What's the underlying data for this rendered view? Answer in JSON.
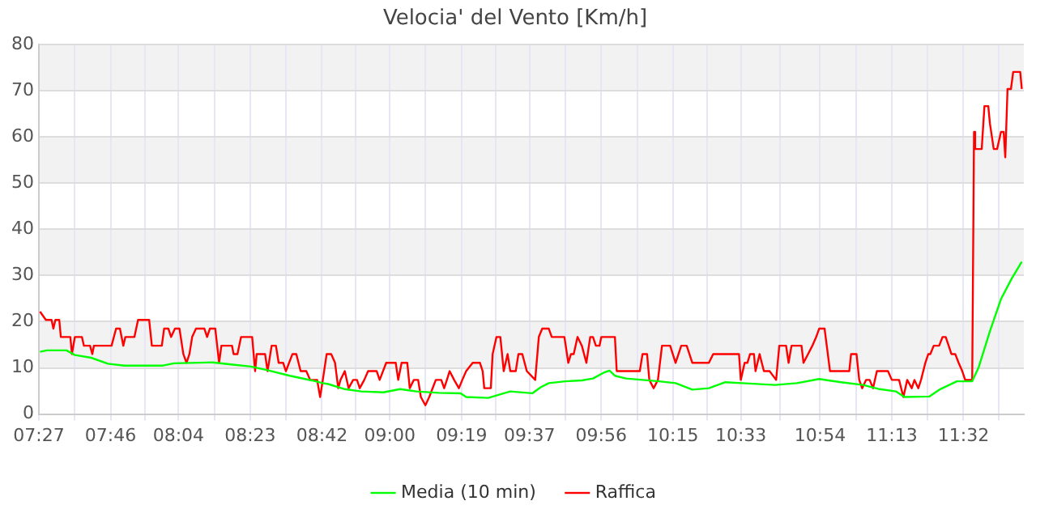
{
  "chart_data": {
    "type": "line",
    "title": "Velocia' del Vento [Km/h]",
    "xlim": [
      7.45,
      11.8
    ],
    "xticks": [
      {
        "value": 7.45,
        "label": "07:27"
      },
      {
        "value": 7.608,
        "label": null
      },
      {
        "value": 7.7667,
        "label": "07:46"
      },
      {
        "value": 7.917,
        "label": null
      },
      {
        "value": 8.0667,
        "label": "08:04"
      },
      {
        "value": 8.225,
        "label": null
      },
      {
        "value": 8.3833,
        "label": "08:23"
      },
      {
        "value": 8.542,
        "label": null
      },
      {
        "value": 8.7,
        "label": "08:42"
      },
      {
        "value": 8.85,
        "label": null
      },
      {
        "value": 9.0,
        "label": "09:00"
      },
      {
        "value": 9.158,
        "label": null
      },
      {
        "value": 9.3167,
        "label": "09:19"
      },
      {
        "value": 9.467,
        "label": null
      },
      {
        "value": 9.6167,
        "label": "09:37"
      },
      {
        "value": 9.775,
        "label": null
      },
      {
        "value": 9.9333,
        "label": "09:56"
      },
      {
        "value": 10.092,
        "label": null
      },
      {
        "value": 10.25,
        "label": "10:15"
      },
      {
        "value": 10.4,
        "label": null
      },
      {
        "value": 10.55,
        "label": "10:33"
      },
      {
        "value": 10.725,
        "label": null
      },
      {
        "value": 10.9,
        "label": "10:54"
      },
      {
        "value": 11.058,
        "label": null
      },
      {
        "value": 11.2167,
        "label": "11:13"
      },
      {
        "value": 11.375,
        "label": null
      },
      {
        "value": 11.5333,
        "label": "11:32"
      },
      {
        "value": 11.69,
        "label": null
      }
    ],
    "ylim": [
      0,
      80
    ],
    "yticks": [
      0,
      10,
      20,
      30,
      40,
      50,
      60,
      70,
      80
    ],
    "grid": true,
    "legend": "bottom",
    "marker": "none",
    "line_style": "solid",
    "series": [
      {
        "name": "Media (10 min)",
        "color": "#00ff00",
        "x": [
          7.455,
          7.486,
          7.572,
          7.609,
          7.681,
          7.755,
          7.828,
          7.998,
          8.047,
          8.217,
          8.29,
          8.387,
          8.46,
          8.558,
          8.655,
          8.704,
          8.728,
          8.801,
          8.874,
          8.972,
          9.045,
          9.118,
          9.216,
          9.313,
          9.337,
          9.435,
          9.483,
          9.532,
          9.629,
          9.666,
          9.702,
          9.775,
          9.848,
          9.897,
          9.946,
          9.97,
          9.994,
          10.043,
          10.116,
          10.189,
          10.262,
          10.336,
          10.409,
          10.482,
          10.555,
          10.701,
          10.798,
          10.896,
          10.993,
          11.09,
          11.163,
          11.236,
          11.273,
          11.382,
          11.431,
          11.504,
          11.572,
          11.601,
          11.65,
          11.699,
          11.747,
          11.791
        ],
        "values": [
          13.5,
          13.8,
          13.8,
          12.8,
          12.2,
          10.9,
          10.5,
          10.5,
          11,
          11.2,
          10.8,
          10.3,
          9.5,
          8.3,
          7.3,
          6.7,
          6.5,
          5.4,
          4.9,
          4.7,
          5.4,
          4.9,
          4.6,
          4.5,
          3.7,
          3.5,
          4.2,
          4.9,
          4.5,
          5.8,
          6.7,
          7.1,
          7.3,
          7.7,
          9,
          9.4,
          8.3,
          7.7,
          7.4,
          7.1,
          6.7,
          5.3,
          5.6,
          6.9,
          6.7,
          6.3,
          6.7,
          7.6,
          6.9,
          6.3,
          5.4,
          4.9,
          3.7,
          3.8,
          5.4,
          7.1,
          7.1,
          10.2,
          17.9,
          24.9,
          29.4,
          33
        ]
      },
      {
        "name": "Raffica",
        "color": "#ff0000",
        "x": [
          7.455,
          7.481,
          7.506,
          7.514,
          7.523,
          7.54,
          7.547,
          7.589,
          7.596,
          7.609,
          7.64,
          7.649,
          7.676,
          7.686,
          7.693,
          7.771,
          7.791,
          7.808,
          7.823,
          7.832,
          7.872,
          7.888,
          7.937,
          7.949,
          7.993,
          8.003,
          8.022,
          8.034,
          8.051,
          8.071,
          8.088,
          8.102,
          8.115,
          8.127,
          8.144,
          8.181,
          8.193,
          8.205,
          8.229,
          8.246,
          8.256,
          8.303,
          8.31,
          8.327,
          8.343,
          8.392,
          8.405,
          8.412,
          8.449,
          8.46,
          8.478,
          8.497,
          8.509,
          8.529,
          8.541,
          8.57,
          8.587,
          8.606,
          8.631,
          8.648,
          8.679,
          8.692,
          8.704,
          8.721,
          8.741,
          8.758,
          8.772,
          8.782,
          8.801,
          8.818,
          8.838,
          8.855,
          8.867,
          8.887,
          8.904,
          8.942,
          8.955,
          8.984,
          9.026,
          9.037,
          9.052,
          9.077,
          9.088,
          9.106,
          9.125,
          9.137,
          9.157,
          9.174,
          9.203,
          9.227,
          9.24,
          9.252,
          9.264,
          9.284,
          9.305,
          9.32,
          9.337,
          9.366,
          9.398,
          9.41,
          9.417,
          9.446,
          9.454,
          9.471,
          9.488,
          9.503,
          9.52,
          9.532,
          9.556,
          9.568,
          9.585,
          9.605,
          9.642,
          9.658,
          9.673,
          9.702,
          9.715,
          9.771,
          9.788,
          9.8,
          9.812,
          9.829,
          9.848,
          9.868,
          9.885,
          9.897,
          9.91,
          9.926,
          9.934,
          9.994,
          10.002,
          10.104,
          10.116,
          10.136,
          10.146,
          10.165,
          10.184,
          10.202,
          10.238,
          10.262,
          10.287,
          10.311,
          10.336,
          10.409,
          10.428,
          10.542,
          10.55,
          10.567,
          10.579,
          10.591,
          10.608,
          10.615,
          10.633,
          10.652,
          10.677,
          10.706,
          10.72,
          10.75,
          10.761,
          10.774,
          10.818,
          10.827,
          10.847,
          10.866,
          10.883,
          10.896,
          10.92,
          10.944,
          11.029,
          11.037,
          11.061,
          11.073,
          11.086,
          11.103,
          11.119,
          11.134,
          11.151,
          11.2,
          11.217,
          11.249,
          11.268,
          11.285,
          11.305,
          11.317,
          11.334,
          11.346,
          11.365,
          11.378,
          11.387,
          11.402,
          11.426,
          11.441,
          11.455,
          11.468,
          11.48,
          11.497,
          11.512,
          11.528,
          11.541,
          11.572,
          11.58,
          11.585,
          11.614,
          11.626,
          11.643,
          11.65,
          11.667,
          11.682,
          11.699,
          11.711,
          11.718,
          11.728,
          11.743,
          11.753,
          11.784,
          11.791
        ],
        "values": [
          22.2,
          20.4,
          20.4,
          18.5,
          20.4,
          20.4,
          16.7,
          16.7,
          13,
          16.7,
          16.7,
          14.8,
          14.8,
          13,
          14.8,
          14.8,
          18.5,
          18.5,
          14.8,
          16.7,
          16.7,
          20.4,
          20.4,
          14.8,
          14.8,
          18.5,
          18.5,
          16.7,
          18.5,
          18.5,
          13,
          11.1,
          13,
          16.7,
          18.5,
          18.5,
          16.7,
          18.5,
          18.5,
          11.1,
          14.8,
          14.8,
          13,
          13,
          16.7,
          16.7,
          9.3,
          13,
          13,
          9.3,
          14.8,
          14.8,
          11.1,
          11.1,
          9.3,
          13,
          13,
          9.3,
          9.3,
          7.4,
          7.4,
          3.7,
          7.4,
          13,
          13,
          11.1,
          5.6,
          7.4,
          9.3,
          5.6,
          7.4,
          7.4,
          5.6,
          7.4,
          9.3,
          9.3,
          7.4,
          11.1,
          11.1,
          7.4,
          11.1,
          11.1,
          5.6,
          7.4,
          7.4,
          3.7,
          1.9,
          3.7,
          7.4,
          7.4,
          5.6,
          7.4,
          9.3,
          7.4,
          5.6,
          7.4,
          9.3,
          11.1,
          11.1,
          9.3,
          5.6,
          5.6,
          13,
          16.7,
          16.7,
          9.3,
          13,
          9.3,
          9.3,
          13,
          13,
          9.3,
          7.4,
          16.7,
          18.5,
          18.5,
          16.7,
          16.7,
          11.1,
          13,
          13,
          16.7,
          14.8,
          11.1,
          16.7,
          16.7,
          14.8,
          14.8,
          16.7,
          16.7,
          9.3,
          9.3,
          13,
          13,
          7.4,
          5.6,
          7.4,
          14.8,
          14.8,
          11.1,
          14.8,
          14.8,
          11.1,
          11.1,
          13,
          13,
          7.4,
          11.1,
          11.1,
          13,
          13,
          9.3,
          13,
          9.3,
          9.3,
          7.4,
          14.8,
          14.8,
          11.1,
          14.8,
          14.8,
          11.1,
          13,
          14.8,
          16.7,
          18.5,
          18.5,
          9.3,
          9.3,
          13,
          13,
          7.4,
          5.6,
          7.4,
          7.4,
          5.6,
          9.3,
          9.3,
          7.4,
          7.4,
          3.7,
          7.4,
          5.6,
          7.4,
          5.6,
          7.4,
          11.1,
          13,
          13,
          14.8,
          14.8,
          16.7,
          16.7,
          14.8,
          13,
          13,
          11.1,
          9.3,
          7.4,
          7.4,
          61.1,
          57.4,
          57.4,
          66.7,
          66.7,
          63,
          57.4,
          57.4,
          61.1,
          61.1,
          55.6,
          70.4,
          70.4,
          74.1,
          74.1,
          70.4
        ]
      }
    ]
  }
}
